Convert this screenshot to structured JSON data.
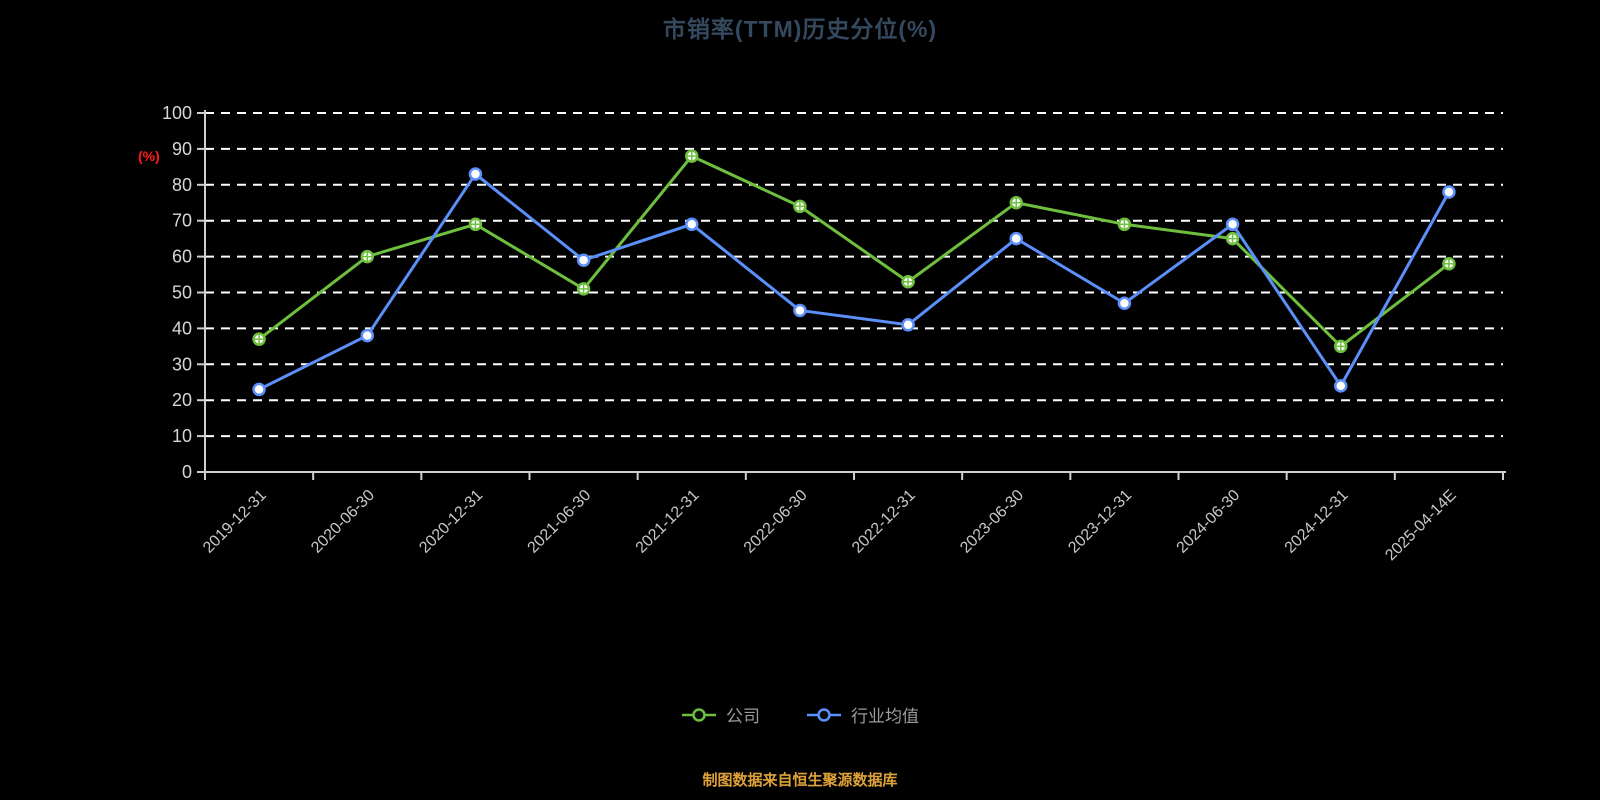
{
  "background": "#000000",
  "colors": {
    "title": "#34495E",
    "unit_label": "#FF1A1A",
    "source_note": "#DFA23A",
    "axis": "#CFCFCF",
    "gridline": "#FFFFFF",
    "series_company": "#6FBF3F",
    "series_industry": "#5B8FF9"
  },
  "footer": {
    "source_text": "制图数据来自恒生聚源数据库"
  },
  "chart_data": {
    "type": "line",
    "title": "市销率(TTM)历史分位(%)",
    "ylabel": "(%)",
    "xlabel": "",
    "ylim": [
      0,
      100
    ],
    "y_ticks": [
      0,
      10,
      20,
      30,
      40,
      50,
      60,
      70,
      80,
      90,
      100
    ],
    "grid": "horizontal-dashed",
    "legend_position": "bottom",
    "categories": [
      "2019-12-31",
      "2020-06-30",
      "2020-12-31",
      "2021-06-30",
      "2021-12-31",
      "2022-06-30",
      "2022-12-31",
      "2023-06-30",
      "2023-12-31",
      "2024-06-30",
      "2024-12-31",
      "2025-04-14E"
    ],
    "series": [
      {
        "key": "company",
        "name": "公司",
        "color": "#6FBF3F",
        "marker": "circle-plus",
        "values": [
          37,
          60,
          69,
          51,
          88,
          74,
          53,
          75,
          69,
          65,
          35,
          58
        ]
      },
      {
        "key": "industry",
        "name": "行业均值",
        "color": "#5B8FF9",
        "marker": "circle",
        "values": [
          23,
          38,
          83,
          59,
          69,
          45,
          41,
          65,
          47,
          69,
          24,
          78
        ]
      }
    ]
  }
}
